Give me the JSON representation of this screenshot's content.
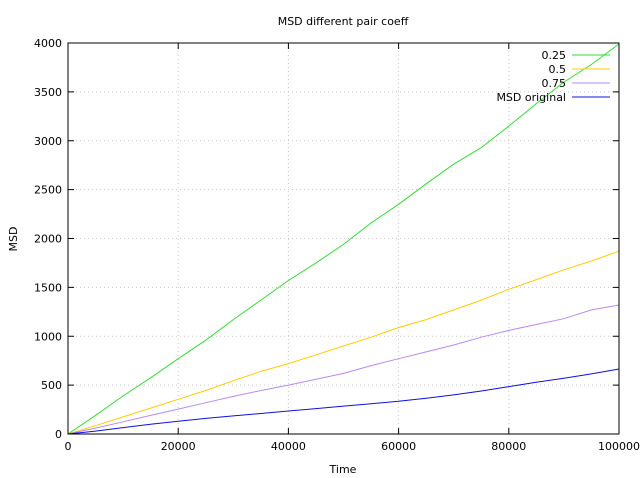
{
  "chart_data": {
    "type": "line",
    "title": "MSD different pair coeff",
    "xlabel": "Time",
    "ylabel": "MSD",
    "xlim": [
      0,
      100000
    ],
    "ylim": [
      0,
      4000
    ],
    "x_ticks": [
      "0",
      "20000",
      "40000",
      "60000",
      "80000",
      "100000"
    ],
    "y_ticks": [
      "0",
      "500",
      "1000",
      "1500",
      "2000",
      "2500",
      "3000",
      "3500",
      "4000"
    ],
    "grid": true,
    "legend_position": "top-right",
    "series": [
      {
        "name": "0.25",
        "color": "#33dd33",
        "points": [
          [
            0,
            0
          ],
          [
            5000,
            190
          ],
          [
            10000,
            390
          ],
          [
            15000,
            575
          ],
          [
            20000,
            770
          ],
          [
            25000,
            960
          ],
          [
            30000,
            1170
          ],
          [
            35000,
            1370
          ],
          [
            40000,
            1570
          ],
          [
            45000,
            1750
          ],
          [
            50000,
            1940
          ],
          [
            55000,
            2160
          ],
          [
            60000,
            2350
          ],
          [
            65000,
            2560
          ],
          [
            70000,
            2760
          ],
          [
            75000,
            2930
          ],
          [
            80000,
            3150
          ],
          [
            85000,
            3380
          ],
          [
            90000,
            3600
          ],
          [
            95000,
            3780
          ],
          [
            100000,
            3990
          ]
        ]
      },
      {
        "name": "0.5",
        "color": "#ffcc00",
        "points": [
          [
            0,
            0
          ],
          [
            5000,
            85
          ],
          [
            10000,
            175
          ],
          [
            15000,
            265
          ],
          [
            20000,
            355
          ],
          [
            25000,
            445
          ],
          [
            30000,
            545
          ],
          [
            35000,
            640
          ],
          [
            40000,
            720
          ],
          [
            45000,
            810
          ],
          [
            50000,
            900
          ],
          [
            55000,
            990
          ],
          [
            60000,
            1090
          ],
          [
            65000,
            1170
          ],
          [
            70000,
            1270
          ],
          [
            75000,
            1370
          ],
          [
            80000,
            1480
          ],
          [
            85000,
            1580
          ],
          [
            90000,
            1680
          ],
          [
            95000,
            1770
          ],
          [
            100000,
            1870
          ]
        ]
      },
      {
        "name": "0.75",
        "color": "#bb88ee",
        "points": [
          [
            0,
            0
          ],
          [
            5000,
            60
          ],
          [
            10000,
            125
          ],
          [
            15000,
            190
          ],
          [
            20000,
            255
          ],
          [
            25000,
            320
          ],
          [
            30000,
            385
          ],
          [
            35000,
            445
          ],
          [
            40000,
            500
          ],
          [
            45000,
            560
          ],
          [
            50000,
            620
          ],
          [
            55000,
            700
          ],
          [
            60000,
            770
          ],
          [
            65000,
            840
          ],
          [
            70000,
            910
          ],
          [
            75000,
            990
          ],
          [
            80000,
            1060
          ],
          [
            85000,
            1120
          ],
          [
            90000,
            1180
          ],
          [
            95000,
            1270
          ],
          [
            100000,
            1320
          ]
        ]
      },
      {
        "name": "MSD original",
        "color": "#1010dd",
        "points": [
          [
            0,
            0
          ],
          [
            5000,
            30
          ],
          [
            10000,
            65
          ],
          [
            15000,
            100
          ],
          [
            20000,
            130
          ],
          [
            25000,
            160
          ],
          [
            30000,
            185
          ],
          [
            35000,
            210
          ],
          [
            40000,
            235
          ],
          [
            45000,
            260
          ],
          [
            50000,
            285
          ],
          [
            55000,
            310
          ],
          [
            60000,
            335
          ],
          [
            65000,
            365
          ],
          [
            70000,
            400
          ],
          [
            75000,
            440
          ],
          [
            80000,
            485
          ],
          [
            85000,
            530
          ],
          [
            90000,
            570
          ],
          [
            95000,
            615
          ],
          [
            100000,
            665
          ]
        ]
      }
    ]
  }
}
